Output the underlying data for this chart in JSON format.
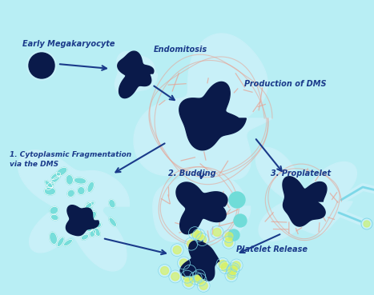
{
  "bg_color": "#b8eef4",
  "dark_blue": "#0a1a4a",
  "light_blue": "#7dd8e8",
  "very_light_blue": "#c8f0f8",
  "cell_outline": "#e8a090",
  "light_teal": "#70dcd8",
  "text_color": "#1a3a8a",
  "arrow_color": "#1a3a8a",
  "labels": {
    "early": "Early Megakaryocyte",
    "endomitosis": "Endomitosis",
    "production": "Production of DMS",
    "frag_line1": "1. Cytoplasmic Fragmentation",
    "frag_line2": "via the DMS",
    "budding": "2. Budding",
    "proplatelet": "3. Proplatelet",
    "platelet": "Platelet Release"
  }
}
